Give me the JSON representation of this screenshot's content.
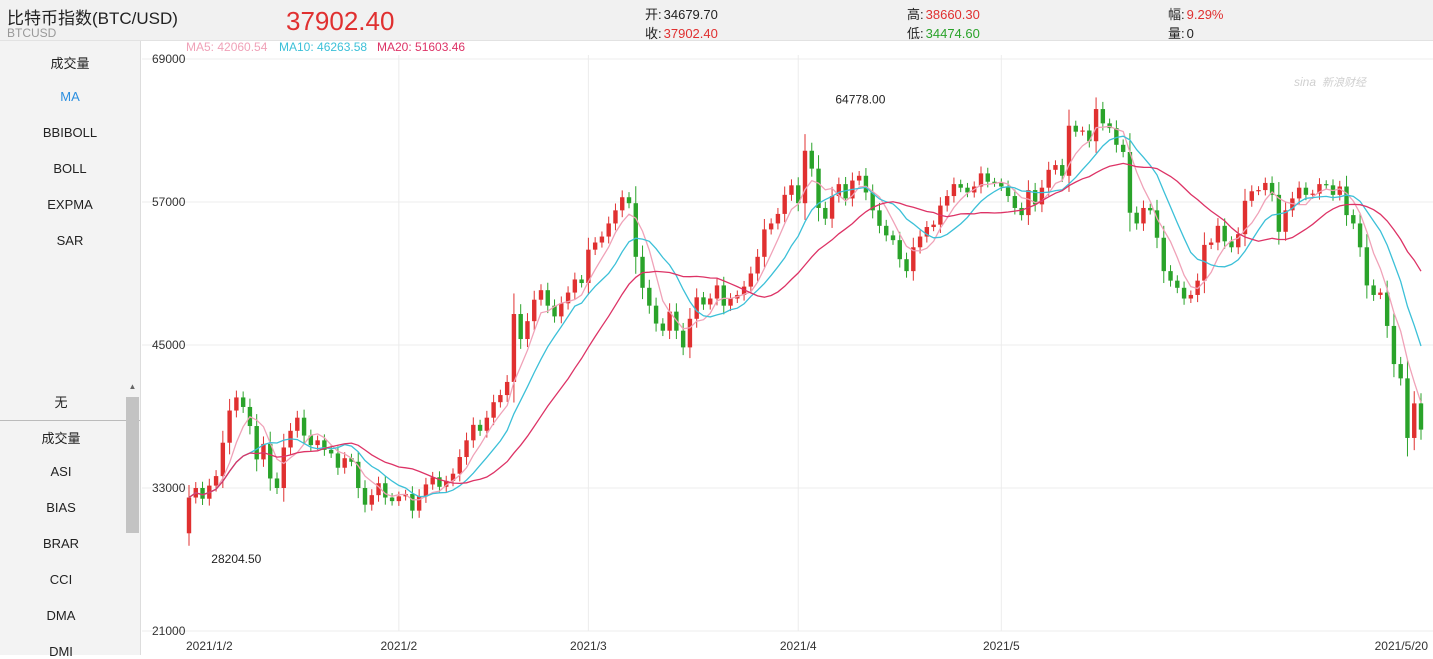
{
  "header": {
    "title": "比特币指数(BTC/USD)",
    "symbol": "BTCUSD",
    "price": "37902.40",
    "open_label": "开:",
    "open_value": "34679.70",
    "close_label": "收:",
    "close_value": "37902.40",
    "high_label": "高:",
    "high_value": "38660.30",
    "low_label": "低:",
    "low_value": "34474.60",
    "change_label": "幅:",
    "change_value": "9.29%",
    "volume_label": "量:",
    "volume_value": "0"
  },
  "indicators_top": [
    "成交量",
    "MA",
    "BBIBOLL",
    "BOLL",
    "EXPMA",
    "SAR"
  ],
  "indicators_top_active": "MA",
  "indicators_bottom": [
    "无",
    "成交量",
    "ASI",
    "BIAS",
    "BRAR",
    "CCI",
    "DMA",
    "DMI"
  ],
  "ma_legend": {
    "ma5": "MA5: 42060.54",
    "ma10": "MA10: 46263.58",
    "ma20": "MA20: 51603.46"
  },
  "watermark": "新浪财经",
  "watermark_logo": "sina",
  "colors": {
    "up": "#e03030",
    "down": "#2aa32a",
    "ma5": "#f0a2b8",
    "ma10": "#3cc0d8",
    "ma20": "#dd3366",
    "active": "#2b8fe0"
  },
  "chart_data": {
    "type": "candlestick",
    "yticks": [
      21000,
      33000,
      45000,
      57000,
      69000
    ],
    "ylim": [
      21000,
      69000
    ],
    "xticks": [
      "2021/1/2",
      "2021/2",
      "2021/3",
      "2021/4",
      "2021/5",
      "2021/5/20"
    ],
    "annotations": [
      {
        "label": "64778.00",
        "value": 64778,
        "index": 98
      },
      {
        "label": "28204.50",
        "value": 28204.5,
        "index": 3
      }
    ],
    "closes": [
      32200,
      33000,
      32100,
      33200,
      34000,
      36800,
      39500,
      40600,
      39800,
      38200,
      35400,
      36700,
      33800,
      33000,
      36400,
      37800,
      38900,
      37400,
      36600,
      37000,
      36200,
      35900,
      34700,
      35500,
      35200,
      33000,
      31600,
      32400,
      33400,
      32200,
      31900,
      32300,
      32500,
      31100,
      32300,
      33300,
      33900,
      33100,
      33600,
      34200,
      35600,
      37000,
      38300,
      37800,
      38900,
      40200,
      40800,
      41900,
      47600,
      45500,
      47000,
      48800,
      49600,
      48300,
      47400,
      48500,
      49400,
      50500,
      50200,
      53000,
      53600,
      54100,
      55200,
      56300,
      57400,
      56900,
      52400,
      49800,
      48300,
      46800,
      46200,
      47800,
      46200,
      44800,
      47200,
      49000,
      48400,
      48900,
      50000,
      48300,
      48900,
      49200,
      49900,
      51000,
      52400,
      54700,
      55200,
      56000,
      57600,
      58400,
      56900,
      61300,
      59800,
      56500,
      55600,
      57500,
      58500,
      57300,
      58800,
      59200,
      57800,
      56300,
      55000,
      54200,
      53800,
      52200,
      51200,
      53200,
      54100,
      54900,
      55100,
      56700,
      57500,
      58500,
      58200,
      57800,
      58300,
      59400,
      58700,
      58600,
      58300,
      57500,
      56500,
      55900,
      58000,
      56800,
      58200,
      59700,
      60100,
      59200,
      63400,
      62900,
      63000,
      62100,
      64800,
      63600,
      63200,
      61800,
      61200,
      56100,
      55200,
      56500,
      56300,
      54000,
      51200,
      50400,
      49800,
      48900,
      49200,
      50400,
      53400,
      53600,
      55000,
      53700,
      53200,
      54300,
      57100,
      57900,
      58000,
      58600,
      57600,
      54500,
      56300,
      57300,
      58200,
      57600,
      57700,
      58500,
      58400,
      57600,
      58300,
      55900,
      55200,
      53200,
      50000,
      49200,
      49400,
      46600,
      43400,
      42200,
      37200,
      40100,
      37900
    ]
  }
}
